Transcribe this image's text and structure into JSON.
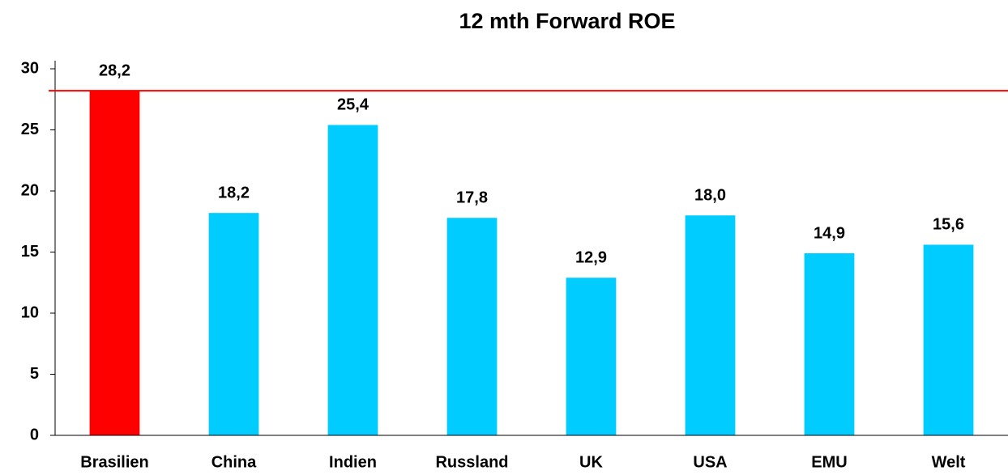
{
  "chart_data": {
    "type": "bar",
    "title": "12 mth Forward ROE",
    "categories": [
      "Brasilien",
      "China",
      "Indien",
      "Russland",
      "UK",
      "USA",
      "EMU",
      "Welt"
    ],
    "values": [
      28.2,
      18.2,
      25.4,
      17.8,
      12.9,
      18.0,
      14.9,
      15.6
    ],
    "value_labels": [
      "28,2",
      "18,2",
      "25,4",
      "17,8",
      "12,9",
      "18,0",
      "14,9",
      "15,6"
    ],
    "colors": [
      "#ff0000",
      "#00ccff",
      "#00ccff",
      "#00ccff",
      "#00ccff",
      "#00ccff",
      "#00ccff",
      "#00ccff"
    ],
    "reference_line": {
      "value": 28.2,
      "color": "#ff0000"
    },
    "ylim": [
      0,
      30
    ],
    "yticks": [
      0,
      5,
      10,
      15,
      20,
      25,
      30
    ],
    "grid": false
  }
}
